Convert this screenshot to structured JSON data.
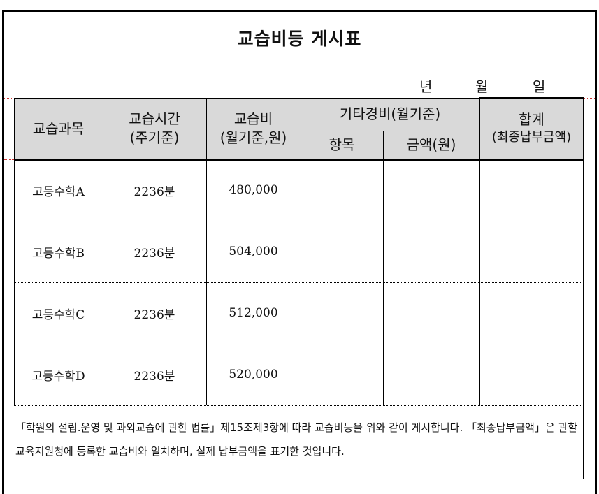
{
  "title": "교습비등 게시표",
  "date": {
    "year": "년",
    "month": "월",
    "day": "일"
  },
  "table": {
    "headers": {
      "subject": "교습과목",
      "hours": "교습시간",
      "hours_sub": "(주기준)",
      "fee": "교습비",
      "fee_sub": "(월기준,원)",
      "other": "기타경비(월기준)",
      "other_item": "항목",
      "other_amount": "금액(원)",
      "total": "합계",
      "total_sub": "(최종납부금액)"
    },
    "rows": [
      {
        "subject": "고등수학A",
        "hours": "2236분",
        "fee": "480,000",
        "item": "",
        "amount": "",
        "total": ""
      },
      {
        "subject": "고등수학B",
        "hours": "2236분",
        "fee": "504,000",
        "item": "",
        "amount": "",
        "total": ""
      },
      {
        "subject": "고등수학C",
        "hours": "2236분",
        "fee": "512,000",
        "item": "",
        "amount": "",
        "total": ""
      },
      {
        "subject": "고등수학D",
        "hours": "2236분",
        "fee": "520,000",
        "item": "",
        "amount": "",
        "total": ""
      }
    ]
  },
  "note": "「학원의 설립.운영 및 과외교습에 관한 법률」제15조제3항에 따라 교습비등을 위와 같이 게시합니다. 「최종납부금액」은 관할 교육지원청에 등록한 교습비와 일치하며, 실제 납부금액을 표기한 것입니다."
}
